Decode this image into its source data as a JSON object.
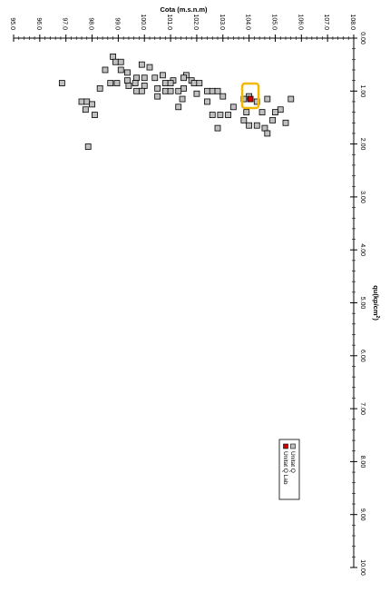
{
  "chart_data": {
    "type": "scatter",
    "title": "",
    "ylabel": "Cota (m.s.n.m)",
    "xlabel": "qu(kp/cm²)",
    "xlabel_main": "qu(kp/cm",
    "xlabel_sup": "2",
    "xlabel_tail": ")",
    "orientation": "rotated-90-clockwise",
    "xlim": [
      0,
      10
    ],
    "ylim": [
      95,
      108
    ],
    "x_ticks": [
      "0.00",
      "1.00",
      "2.00",
      "3.00",
      "4.00",
      "5.00",
      "6.00",
      "7.00",
      "8.00",
      "9.00",
      "10.00"
    ],
    "y_ticks": [
      "95.0",
      "96.0",
      "97.0",
      "98.0",
      "99.0",
      "100.0",
      "101.0",
      "102.0",
      "103.0",
      "104.0",
      "105.0",
      "106.0",
      "107.0",
      "108.0"
    ],
    "grid": false,
    "legend_position": "lower-right",
    "series": [
      {
        "name": "Unitat Q",
        "color": "#c0c0c0",
        "marker": "square",
        "points": [
          {
            "x": 0.35,
            "y": 98.8
          },
          {
            "x": 0.45,
            "y": 98.9
          },
          {
            "x": 0.45,
            "y": 99.1
          },
          {
            "x": 0.5,
            "y": 99.9
          },
          {
            "x": 0.55,
            "y": 100.2
          },
          {
            "x": 0.6,
            "y": 98.5
          },
          {
            "x": 0.6,
            "y": 99.1
          },
          {
            "x": 0.65,
            "y": 99.35
          },
          {
            "x": 0.7,
            "y": 100.7
          },
          {
            "x": 0.7,
            "y": 101.6
          },
          {
            "x": 0.75,
            "y": 99.7
          },
          {
            "x": 0.75,
            "y": 100.0
          },
          {
            "x": 0.75,
            "y": 100.4
          },
          {
            "x": 0.75,
            "y": 101.5
          },
          {
            "x": 0.8,
            "y": 99.35
          },
          {
            "x": 0.8,
            "y": 101.1
          },
          {
            "x": 0.8,
            "y": 101.8
          },
          {
            "x": 0.85,
            "y": 98.7
          },
          {
            "x": 0.85,
            "y": 98.95
          },
          {
            "x": 0.85,
            "y": 99.65
          },
          {
            "x": 0.85,
            "y": 100.8
          },
          {
            "x": 0.85,
            "y": 101.0
          },
          {
            "x": 0.85,
            "y": 101.9
          },
          {
            "x": 0.85,
            "y": 102.1
          },
          {
            "x": 0.9,
            "y": 99.4
          },
          {
            "x": 0.9,
            "y": 100.0
          },
          {
            "x": 0.95,
            "y": 98.3
          },
          {
            "x": 0.95,
            "y": 100.5
          },
          {
            "x": 0.95,
            "y": 101.5
          },
          {
            "x": 1.0,
            "y": 101.3
          },
          {
            "x": 1.0,
            "y": 102.4
          },
          {
            "x": 0.85,
            "y": 96.85
          },
          {
            "x": 1.0,
            "y": 99.7
          },
          {
            "x": 1.0,
            "y": 99.9
          },
          {
            "x": 1.0,
            "y": 100.8
          },
          {
            "x": 1.0,
            "y": 101.0
          },
          {
            "x": 1.0,
            "y": 102.6
          },
          {
            "x": 1.0,
            "y": 102.8
          },
          {
            "x": 1.05,
            "y": 102.0
          },
          {
            "x": 1.1,
            "y": 100.5
          },
          {
            "x": 1.1,
            "y": 103.0
          },
          {
            "x": 1.1,
            "y": 104.0
          },
          {
            "x": 1.15,
            "y": 101.45
          },
          {
            "x": 1.15,
            "y": 103.8
          },
          {
            "x": 1.15,
            "y": 104.7
          },
          {
            "x": 1.15,
            "y": 105.6
          },
          {
            "x": 1.2,
            "y": 97.6
          },
          {
            "x": 1.2,
            "y": 97.8
          },
          {
            "x": 1.2,
            "y": 102.4
          },
          {
            "x": 1.2,
            "y": 104.3
          },
          {
            "x": 1.25,
            "y": 98.0
          },
          {
            "x": 1.3,
            "y": 101.3
          },
          {
            "x": 1.3,
            "y": 103.4
          },
          {
            "x": 1.35,
            "y": 97.75
          },
          {
            "x": 1.35,
            "y": 105.2
          },
          {
            "x": 1.4,
            "y": 103.9
          },
          {
            "x": 1.4,
            "y": 104.5
          },
          {
            "x": 1.4,
            "y": 105.0
          },
          {
            "x": 1.45,
            "y": 102.6
          },
          {
            "x": 1.45,
            "y": 102.9
          },
          {
            "x": 1.45,
            "y": 103.2
          },
          {
            "x": 1.45,
            "y": 98.1
          },
          {
            "x": 1.55,
            "y": 103.8
          },
          {
            "x": 1.55,
            "y": 104.9
          },
          {
            "x": 1.6,
            "y": 105.4
          },
          {
            "x": 1.65,
            "y": 104.0
          },
          {
            "x": 1.65,
            "y": 104.3
          },
          {
            "x": 1.7,
            "y": 104.6
          },
          {
            "x": 1.7,
            "y": 102.8
          },
          {
            "x": 1.8,
            "y": 104.7
          },
          {
            "x": 2.05,
            "y": 97.85
          }
        ]
      },
      {
        "name": "Unitat Q Lab",
        "color": "#cc0000",
        "marker": "square",
        "points": [
          {
            "x": 1.15,
            "y": 104.05
          }
        ]
      }
    ],
    "annotations": [
      {
        "type": "highlight-box",
        "color": "#f5b800",
        "around_series": "Unitat Q Lab"
      }
    ]
  }
}
